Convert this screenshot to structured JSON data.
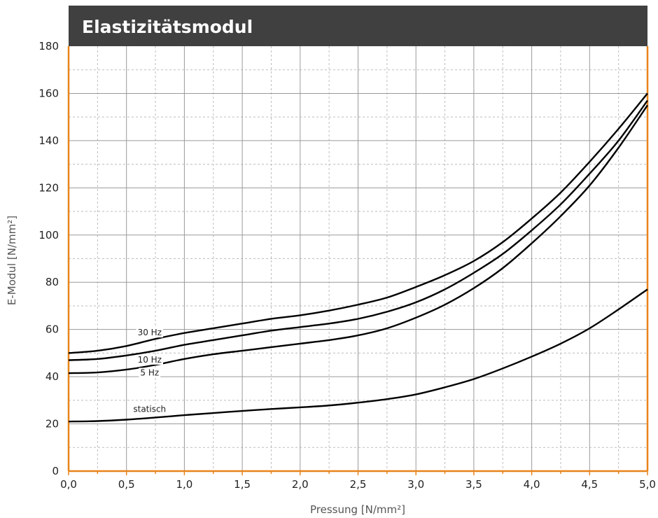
{
  "chart_data": {
    "type": "line",
    "title": "Elastizitätsmodul",
    "xlabel": "Pressung [N/mm²]",
    "ylabel": "E-Modul [N/mm²]",
    "xlim": [
      0,
      5
    ],
    "ylim": [
      0,
      180
    ],
    "grid": true,
    "x_ticks": [
      "0,0",
      "0,5",
      "1,0",
      "1,5",
      "2,0",
      "2,5",
      "3,0",
      "3,5",
      "4,0",
      "4,5",
      "5,0"
    ],
    "y_ticks": [
      "0",
      "20",
      "40",
      "60",
      "80",
      "100",
      "120",
      "140",
      "160",
      "180"
    ],
    "x": [
      0,
      0.25,
      0.5,
      0.75,
      1.0,
      1.25,
      1.5,
      1.75,
      2.0,
      2.25,
      2.5,
      2.75,
      3.0,
      3.25,
      3.5,
      3.75,
      4.0,
      4.25,
      4.5,
      4.75,
      5.0
    ],
    "series": [
      {
        "name": "30 Hz",
        "label_at": [
          0.7,
          57.5
        ],
        "values": [
          50,
          51,
          53,
          56,
          58.5,
          60.5,
          62.5,
          64.5,
          66,
          68,
          70.5,
          73.5,
          78,
          83,
          89,
          97,
          107,
          118,
          131,
          145,
          160
        ]
      },
      {
        "name": "10 Hz",
        "label_at": [
          0.7,
          46
        ],
        "values": [
          47,
          47.5,
          49,
          51,
          53.5,
          55.5,
          57.5,
          59.5,
          61,
          62.5,
          64.5,
          67.5,
          71.5,
          77,
          84,
          92,
          102,
          113,
          126,
          140,
          157
        ]
      },
      {
        "name": "5 Hz",
        "label_at": [
          0.7,
          40.5
        ],
        "values": [
          41.5,
          41.8,
          43,
          45,
          47.5,
          49.5,
          51,
          52.5,
          54,
          55.5,
          57.5,
          60.5,
          65,
          70.5,
          77.5,
          86,
          96.5,
          108,
          121,
          137,
          155
        ]
      },
      {
        "name": "statisch",
        "label_at": [
          0.7,
          25
        ],
        "values": [
          21,
          21.2,
          21.8,
          22.7,
          23.7,
          24.6,
          25.5,
          26.3,
          27,
          27.8,
          29,
          30.5,
          32.5,
          35.5,
          39,
          43.5,
          48.5,
          54,
          60.5,
          68.5,
          77
        ]
      }
    ],
    "colors": {
      "header_bg": "#404040",
      "plot_border": "#E8841A",
      "line": "#000000",
      "grid_major": "#9a9a9a",
      "grid_minor": "#bdbdbd"
    }
  }
}
